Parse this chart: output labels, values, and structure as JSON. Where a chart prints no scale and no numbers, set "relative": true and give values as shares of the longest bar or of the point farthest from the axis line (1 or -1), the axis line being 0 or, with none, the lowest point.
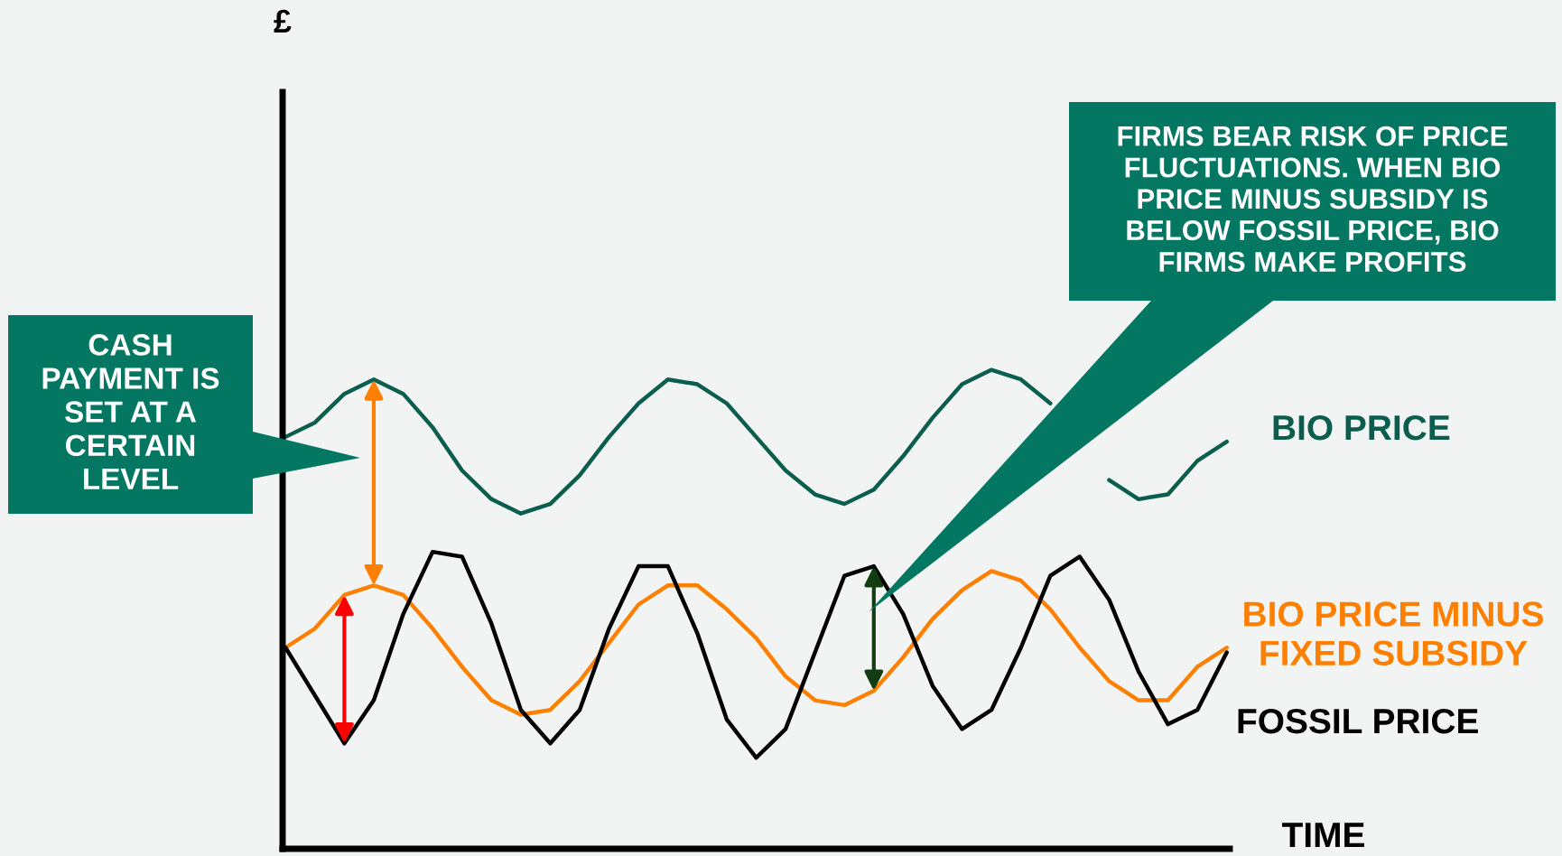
{
  "chart_data": {
    "type": "line",
    "relative": true,
    "xlabel": "TIME",
    "marker": "none",
    "line_style": "solid",
    "categories": [
      null,
      null,
      null,
      null,
      null,
      null,
      null,
      null,
      null,
      null,
      null,
      null,
      null,
      null,
      null,
      null,
      null,
      null,
      null,
      null,
      null,
      null,
      null,
      null,
      null,
      null,
      null,
      null,
      null,
      null,
      null,
      null,
      null
    ],
    "series": [
      {
        "name": "BIO PRICE",
        "color": "#0b5e4e",
        "values": [
          0.86,
          0.89,
          0.95,
          0.98,
          0.95,
          0.88,
          0.79,
          0.73,
          0.7,
          0.72,
          0.78,
          0.86,
          0.93,
          0.98,
          0.97,
          0.93,
          0.86,
          0.79,
          0.74,
          0.72,
          0.75,
          0.82,
          0.9,
          0.97,
          1.0,
          0.98,
          0.93,
          null,
          0.77,
          0.73,
          0.74,
          0.81,
          0.85
        ]
      },
      {
        "name": "BIO PRICE MINUS FIXED SUBSIDY",
        "color": "#ff8000",
        "values": [
          0.42,
          0.46,
          0.53,
          0.55,
          0.53,
          0.46,
          0.38,
          0.31,
          0.28,
          0.29,
          0.35,
          0.43,
          0.51,
          0.55,
          0.55,
          0.5,
          0.44,
          0.36,
          0.31,
          0.3,
          0.33,
          0.4,
          0.48,
          0.54,
          0.58,
          0.56,
          0.5,
          0.42,
          0.35,
          0.31,
          0.31,
          0.38,
          0.42
        ]
      },
      {
        "name": "FOSSIL PRICE",
        "color": "#000000",
        "values": [
          0.42,
          0.32,
          0.22,
          0.31,
          0.49,
          0.62,
          0.61,
          0.47,
          0.29,
          0.22,
          0.29,
          0.46,
          0.59,
          0.59,
          0.45,
          0.27,
          0.19,
          0.25,
          0.41,
          0.57,
          0.59,
          0.49,
          0.34,
          0.25,
          0.29,
          0.42,
          0.57,
          0.61,
          0.52,
          0.37,
          0.26,
          0.29,
          0.41
        ]
      }
    ],
    "annotations": [
      "£",
      "CASH\nPAYMENT IS\nSET AT A\nCERTAIN\nLEVEL",
      "FIRMS BEAR RISK OF PRICE\nFLUCTUATIONS. WHEN BIO\nPRICE MINUS SUBSIDY IS\nBELOW FOSSIL PRICE, BIO\nFIRMS MAKE PROFITS"
    ]
  }
}
